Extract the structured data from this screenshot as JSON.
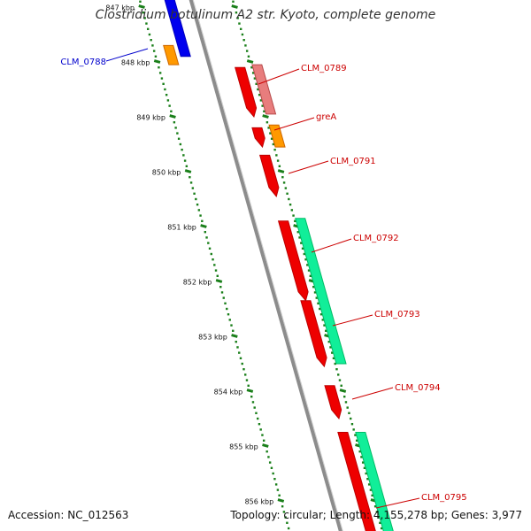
{
  "title": "Clostridium botulinum A2 str. Kyoto, complete genome",
  "footer": {
    "accession": "Accession: NC_012563",
    "summary": "Topology: circular; Length: 4,155,278 bp; Genes: 3,977"
  },
  "colors": {
    "backbone": "#8c8c8c",
    "tick": "#1a7f1a",
    "label_red": "#cc0000",
    "label_blue": "#0000cc",
    "cds_red": "#ee0000",
    "cds_pink": "#e87d7d",
    "cds_orange": "#ff9900",
    "cds_blue": "#0000ee",
    "cds_green": "#11ee99"
  },
  "scale": {
    "ticks": [
      {
        "label": "847 kbp",
        "kbp": 847
      },
      {
        "label": "848 kbp",
        "kbp": 848
      },
      {
        "label": "849 kbp",
        "kbp": 849
      },
      {
        "label": "850 kbp",
        "kbp": 850
      },
      {
        "label": "851 kbp",
        "kbp": 851
      },
      {
        "label": "852 kbp",
        "kbp": 852
      },
      {
        "label": "853 kbp",
        "kbp": 853
      },
      {
        "label": "854 kbp",
        "kbp": 854
      },
      {
        "label": "855 kbp",
        "kbp": 855
      },
      {
        "label": "856 kbp",
        "kbp": 856
      }
    ]
  },
  "features": [
    {
      "name": "CLM_0788",
      "label_color": "blue",
      "blocks": [
        {
          "track": "inner_1",
          "color": "orange",
          "start_kbp": 847.7,
          "end_kbp": 848.05
        },
        {
          "track": "inner_2",
          "color": "blue",
          "start_kbp": 846.8,
          "end_kbp": 847.9
        }
      ]
    },
    {
      "name": "CLM_0789",
      "label_color": "red",
      "blocks": [
        {
          "track": "outer_1",
          "color": "red",
          "start_kbp": 848.1,
          "end_kbp": 849.0
        },
        {
          "track": "outer_2",
          "color": "pink",
          "start_kbp": 848.05,
          "end_kbp": 848.95
        }
      ]
    },
    {
      "name": "greA",
      "label_color": "red",
      "blocks": [
        {
          "track": "outer_1",
          "color": "red",
          "start_kbp": 849.2,
          "end_kbp": 849.55
        },
        {
          "track": "outer_2",
          "color": "orange",
          "start_kbp": 849.15,
          "end_kbp": 849.55
        }
      ]
    },
    {
      "name": "CLM_0791",
      "label_color": "red",
      "blocks": [
        {
          "track": "outer_1",
          "color": "red",
          "start_kbp": 849.7,
          "end_kbp": 850.45
        }
      ]
    },
    {
      "name": "CLM_0792",
      "label_color": "red",
      "blocks": [
        {
          "track": "outer_1",
          "color": "red",
          "start_kbp": 850.9,
          "end_kbp": 852.35
        },
        {
          "track": "outer_2",
          "color": "green",
          "start_kbp": 850.85,
          "end_kbp": 853.5
        }
      ]
    },
    {
      "name": "CLM_0793",
      "label_color": "red",
      "blocks": [
        {
          "track": "outer_1",
          "color": "red",
          "start_kbp": 852.35,
          "end_kbp": 853.55
        }
      ]
    },
    {
      "name": "CLM_0794",
      "label_color": "red",
      "blocks": [
        {
          "track": "outer_1",
          "color": "red",
          "start_kbp": 853.9,
          "end_kbp": 854.5
        }
      ]
    },
    {
      "name": "CLM_0795",
      "label_color": "red",
      "blocks": [
        {
          "track": "outer_1",
          "color": "red",
          "start_kbp": 854.75,
          "end_kbp": 856.9
        },
        {
          "track": "outer_2",
          "color": "green",
          "start_kbp": 854.75,
          "end_kbp": 856.9
        }
      ]
    }
  ]
}
